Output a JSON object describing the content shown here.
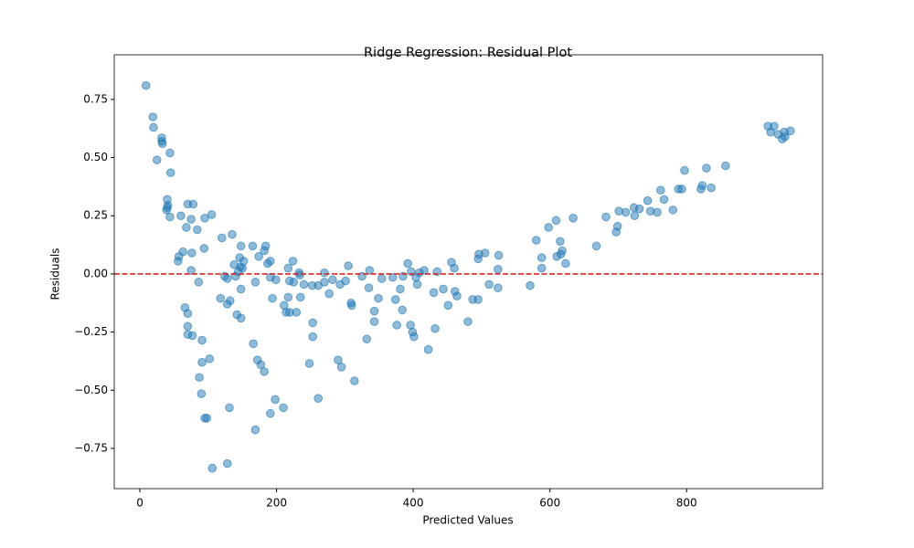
{
  "chart_data": {
    "type": "scatter",
    "title": "Ridge Regression: Residual Plot",
    "x_label": "Predicted Values",
    "y_label": "Residuals",
    "x": [
      9,
      19,
      20,
      25,
      32,
      32,
      33,
      44,
      45,
      40,
      40,
      39,
      41,
      44,
      60,
      70,
      78,
      75,
      68,
      84,
      95,
      105,
      94,
      63,
      57,
      56,
      76,
      75,
      86,
      66,
      70,
      70,
      70,
      77,
      91,
      91,
      87,
      102,
      90,
      95,
      98,
      106,
      128,
      131,
      118,
      124,
      128,
      128,
      132,
      120,
      135,
      138,
      140,
      144,
      147,
      150,
      146,
      152,
      148,
      165,
      148,
      142,
      148,
      169,
      174,
      182,
      184,
      187,
      191,
      191,
      199,
      194,
      166,
      172,
      177,
      182,
      198,
      191,
      169,
      210,
      211,
      217,
      214,
      219,
      217,
      224,
      219,
      225,
      229,
      234,
      233,
      235,
      240,
      248,
      253,
      253,
      252,
      261,
      261,
      270,
      270,
      277,
      282,
      290,
      295,
      293,
      301,
      305,
      309,
      310,
      314,
      325,
      332,
      336,
      335,
      343,
      343,
      349,
      354,
      370,
      374,
      376,
      381,
      384,
      385,
      392,
      397,
      396,
      399,
      401,
      404,
      406,
      409,
      416,
      422,
      430,
      432,
      435,
      444,
      451,
      456,
      460,
      461,
      464,
      480,
      487,
      495,
      495,
      496,
      505,
      511,
      524,
      525,
      524,
      571,
      580,
      588,
      588,
      598,
      609,
      610,
      615,
      616,
      618,
      623,
      634,
      668,
      682,
      697,
      699,
      701,
      711,
      723,
      724,
      731,
      743,
      747,
      757,
      762,
      767,
      780,
      788,
      793,
      797,
      821,
      823,
      829,
      836,
      857,
      919,
      923,
      928,
      934,
      940,
      943,
      944,
      952
    ],
    "values": [
      0.81,
      0.675,
      0.63,
      0.49,
      0.585,
      0.57,
      0.56,
      0.52,
      0.435,
      0.32,
      0.285,
      0.275,
      0.295,
      0.245,
      0.25,
      0.3,
      0.3,
      0.235,
      0.2,
      0.19,
      0.24,
      0.255,
      0.11,
      0.095,
      0.075,
      0.055,
      0.09,
      0.015,
      -0.035,
      -0.145,
      -0.17,
      -0.225,
      -0.26,
      -0.265,
      -0.285,
      -0.38,
      -0.445,
      -0.365,
      -0.515,
      -0.62,
      -0.62,
      -0.835,
      -0.815,
      -0.575,
      -0.105,
      -0.01,
      -0.02,
      -0.13,
      -0.115,
      0.155,
      0.17,
      0.04,
      -0.01,
      0.01,
      0.03,
      0.025,
      0.07,
      0.055,
      0.12,
      0.12,
      -0.065,
      -0.175,
      -0.19,
      -0.035,
      0.075,
      0.1,
      0.12,
      0.045,
      0.055,
      -0.015,
      -0.025,
      -0.105,
      -0.3,
      -0.37,
      -0.39,
      -0.42,
      -0.54,
      -0.6,
      -0.67,
      -0.575,
      -0.135,
      -0.1,
      -0.165,
      -0.165,
      0.025,
      0.055,
      -0.03,
      -0.035,
      -0.165,
      -0.005,
      0.005,
      -0.1,
      -0.045,
      -0.385,
      -0.21,
      -0.27,
      -0.05,
      -0.05,
      -0.535,
      0.005,
      -0.035,
      -0.085,
      -0.025,
      -0.37,
      -0.4,
      -0.045,
      -0.03,
      0.035,
      -0.125,
      -0.135,
      -0.46,
      -0.01,
      -0.28,
      0.015,
      -0.06,
      -0.16,
      -0.205,
      -0.105,
      -0.02,
      -0.015,
      -0.11,
      -0.22,
      -0.065,
      -0.155,
      -0.01,
      0.045,
      0.01,
      -0.22,
      -0.25,
      -0.27,
      -0.015,
      -0.045,
      0.005,
      0.015,
      -0.325,
      -0.08,
      -0.235,
      0.01,
      -0.065,
      -0.135,
      0.05,
      0.025,
      -0.075,
      -0.095,
      -0.205,
      -0.11,
      -0.11,
      0.065,
      0.085,
      0.09,
      -0.045,
      0.02,
      0.08,
      -0.06,
      -0.05,
      0.145,
      0.025,
      0.07,
      0.2,
      0.23,
      0.075,
      0.14,
      0.085,
      0.1,
      0.045,
      0.24,
      0.12,
      0.245,
      0.18,
      0.205,
      0.27,
      0.265,
      0.285,
      0.25,
      0.28,
      0.315,
      0.27,
      0.265,
      0.36,
      0.32,
      0.275,
      0.365,
      0.365,
      0.445,
      0.365,
      0.38,
      0.455,
      0.37,
      0.465,
      0.635,
      0.61,
      0.635,
      0.6,
      0.58,
      0.61,
      0.59,
      0.615
    ],
    "color": "#1f77b4",
    "hline": 0,
    "hline_color": "#d62728",
    "xlim": [
      -37.5,
      999
    ],
    "ylim": [
      -0.923,
      0.942
    ],
    "xticks": [
      0,
      200,
      400,
      600,
      800
    ],
    "yticks": [
      {
        "value": -0.75,
        "label": "−0.75"
      },
      {
        "value": -0.5,
        "label": "−0.50"
      },
      {
        "value": -0.25,
        "label": "−0.25"
      },
      {
        "value": 0,
        "label": "0.00"
      },
      {
        "value": 0.25,
        "label": "0.25"
      },
      {
        "value": 0.5,
        "label": "0.50"
      },
      {
        "value": 0.75,
        "label": "0.75"
      }
    ]
  }
}
